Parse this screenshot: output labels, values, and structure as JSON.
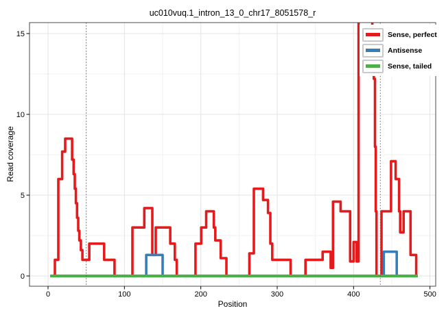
{
  "title": "uc010vuq.1_intron_13_0_chr17_8051578_r",
  "chart_data": {
    "type": "step-line",
    "title": "uc010vuq.1_intron_13_0_chr17_8051578_r",
    "xlabel": "Position",
    "ylabel": "Read coverage",
    "x_ticks": [
      0,
      100,
      200,
      300,
      400,
      500
    ],
    "y_ticks": [
      0,
      5,
      10,
      15
    ],
    "xlim": [
      -24,
      508
    ],
    "ylim": [
      -0.6,
      15.7
    ],
    "grid": "major+minor",
    "legend_position": "top-right-inside",
    "vlines": {
      "style": "dotted",
      "color": "#666666",
      "positions": [
        50,
        435
      ]
    },
    "series": [
      {
        "name": "Sense, perfect",
        "color": "#E41A1C",
        "note": "step function: [position, coverage] holds until next position; peak at ~409-425 exceeds axis and is clipped at panel top",
        "steps": [
          [
            3,
            0
          ],
          [
            9,
            1
          ],
          [
            13.5,
            6
          ],
          [
            18.5,
            7.7
          ],
          [
            22.5,
            8.5
          ],
          [
            31.5,
            7.2
          ],
          [
            33.5,
            6.3
          ],
          [
            35,
            5.4
          ],
          [
            36.5,
            4.5
          ],
          [
            38,
            3.6
          ],
          [
            39.5,
            2.8
          ],
          [
            41,
            2.2
          ],
          [
            43,
            1.6
          ],
          [
            45,
            1
          ],
          [
            54,
            2
          ],
          [
            73.5,
            1
          ],
          [
            87,
            0
          ],
          [
            110.5,
            3
          ],
          [
            126,
            4.2
          ],
          [
            136.5,
            1.3
          ],
          [
            141,
            3
          ],
          [
            160,
            2
          ],
          [
            166,
            1
          ],
          [
            168.5,
            0
          ],
          [
            193,
            2
          ],
          [
            200.5,
            3
          ],
          [
            207,
            4
          ],
          [
            217,
            3
          ],
          [
            219,
            2.2
          ],
          [
            226,
            1.1
          ],
          [
            233.5,
            0
          ],
          [
            263.5,
            1.4
          ],
          [
            269.5,
            5.4
          ],
          [
            281.5,
            4.7
          ],
          [
            288,
            3.9
          ],
          [
            291,
            2
          ],
          [
            293.5,
            1
          ],
          [
            317.5,
            0
          ],
          [
            337,
            1
          ],
          [
            359.5,
            1.5
          ],
          [
            370,
            0.5
          ],
          [
            373,
            4.6
          ],
          [
            383,
            4
          ],
          [
            395.5,
            0.9
          ],
          [
            400,
            2.1
          ],
          [
            404,
            0.9
          ],
          [
            406.5,
            16.2
          ],
          [
            424.5,
            13
          ],
          [
            426.5,
            12.2
          ],
          [
            428,
            8
          ],
          [
            429,
            4
          ],
          [
            430,
            0
          ],
          [
            436.5,
            4
          ],
          [
            449,
            7.1
          ],
          [
            455,
            6
          ],
          [
            459.5,
            4
          ],
          [
            461,
            2.7
          ],
          [
            465.5,
            4
          ],
          [
            474.5,
            1.3
          ],
          [
            482,
            0
          ],
          [
            484,
            0
          ]
        ]
      },
      {
        "name": "Antisense",
        "color": "#377EB8",
        "steps": [
          [
            3,
            0
          ],
          [
            128.5,
            1.3
          ],
          [
            150,
            0
          ],
          [
            439.5,
            1.5
          ],
          [
            456.5,
            0
          ],
          [
            484,
            0
          ]
        ]
      },
      {
        "name": "Sense, tailed",
        "color": "#4DAF4A",
        "steps": [
          [
            3,
            0
          ],
          [
            484,
            0
          ]
        ]
      }
    ],
    "legend": [
      {
        "label": "Sense, perfect",
        "color": "#E41A1C"
      },
      {
        "label": "Antisense",
        "color": "#377EB8"
      },
      {
        "label": "Sense, tailed",
        "color": "#4DAF4A"
      }
    ],
    "colors": {
      "grid_major": "#e3e3e3",
      "grid_minor": "#f1f1f1",
      "panel_border": "#4a4a4a",
      "tick": "#000000",
      "legend_key_border": "#c9c9c9"
    }
  }
}
